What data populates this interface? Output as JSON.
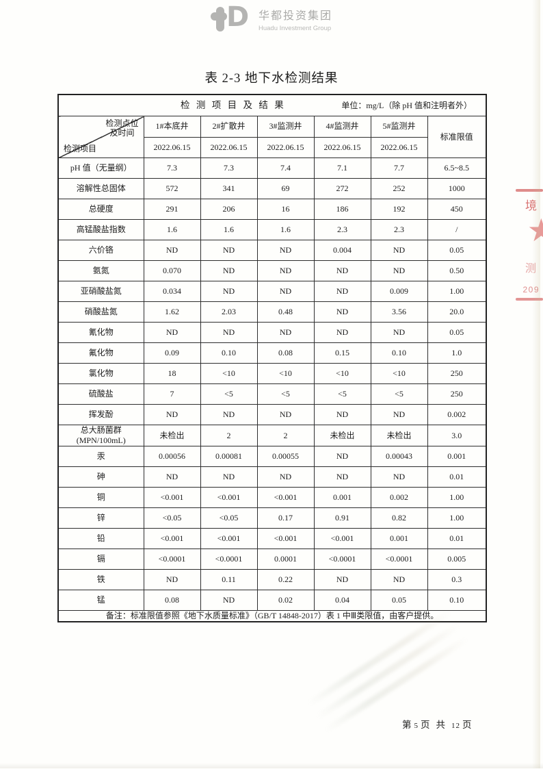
{
  "logo": {
    "icon": "huadu-monogram-icon",
    "name_cn": "华都投资集团",
    "name_en": "Huadu Investment Group"
  },
  "page": {
    "title": "表 2-3 地下水检测结果"
  },
  "table": {
    "header_title": "检 测 项 目 及 结 果",
    "unit_note": "单位：mg/L（除 pH 值和注明者外）",
    "corner_top": "检测点位\n及时间",
    "corner_bottom": "检测项目",
    "limit_header": "标准限值",
    "columns": [
      {
        "label": "1#本底井",
        "date": "2022.06.15"
      },
      {
        "label": "2#扩散井",
        "date": "2022.06.15"
      },
      {
        "label": "3#监测井",
        "date": "2022.06.15"
      },
      {
        "label": "4#监测井",
        "date": "2022.06.15"
      },
      {
        "label": "5#监测井",
        "date": "2022.06.15"
      }
    ],
    "rows": [
      {
        "name": "pH 值（无量纲）",
        "values": [
          "7.3",
          "7.3",
          "7.4",
          "7.1",
          "7.7"
        ],
        "limit": "6.5~8.5"
      },
      {
        "name": "溶解性总固体",
        "values": [
          "572",
          "341",
          "69",
          "272",
          "252"
        ],
        "limit": "1000"
      },
      {
        "name": "总硬度",
        "values": [
          "291",
          "206",
          "16",
          "186",
          "192"
        ],
        "limit": "450"
      },
      {
        "name": "高锰酸盐指数",
        "values": [
          "1.6",
          "1.6",
          "1.6",
          "2.3",
          "2.3"
        ],
        "limit": "/"
      },
      {
        "name": "六价铬",
        "values": [
          "ND",
          "ND",
          "ND",
          "0.004",
          "ND"
        ],
        "limit": "0.05"
      },
      {
        "name": "氨氮",
        "values": [
          "0.070",
          "ND",
          "ND",
          "ND",
          "ND"
        ],
        "limit": "0.50"
      },
      {
        "name": "亚硝酸盐氮",
        "values": [
          "0.034",
          "ND",
          "ND",
          "ND",
          "0.009"
        ],
        "limit": "1.00"
      },
      {
        "name": "硝酸盐氮",
        "values": [
          "1.62",
          "2.03",
          "0.48",
          "ND",
          "3.56"
        ],
        "limit": "20.0"
      },
      {
        "name": "氰化物",
        "values": [
          "ND",
          "ND",
          "ND",
          "ND",
          "ND"
        ],
        "limit": "0.05"
      },
      {
        "name": "氟化物",
        "values": [
          "0.09",
          "0.10",
          "0.08",
          "0.15",
          "0.10"
        ],
        "limit": "1.0"
      },
      {
        "name": "氯化物",
        "values": [
          "18",
          "<10",
          "<10",
          "<10",
          "<10"
        ],
        "limit": "250"
      },
      {
        "name": "硫酸盐",
        "values": [
          "7",
          "<5",
          "<5",
          "<5",
          "<5"
        ],
        "limit": "250"
      },
      {
        "name": "挥发酚",
        "values": [
          "ND",
          "ND",
          "ND",
          "ND",
          "ND"
        ],
        "limit": "0.002"
      },
      {
        "name": "总大肠菌群\n(MPN/100mL)",
        "values": [
          "未检出",
          "2",
          "2",
          "未检出",
          "未检出"
        ],
        "limit": "3.0"
      },
      {
        "name": "汞",
        "values": [
          "0.00056",
          "0.00081",
          "0.00055",
          "ND",
          "0.00043"
        ],
        "limit": "0.001"
      },
      {
        "name": "砷",
        "values": [
          "ND",
          "ND",
          "ND",
          "ND",
          "ND"
        ],
        "limit": "0.01"
      },
      {
        "name": "铜",
        "values": [
          "<0.001",
          "<0.001",
          "<0.001",
          "0.001",
          "0.002"
        ],
        "limit": "1.00"
      },
      {
        "name": "锌",
        "values": [
          "<0.05",
          "<0.05",
          "0.17",
          "0.91",
          "0.82"
        ],
        "limit": "1.00"
      },
      {
        "name": "铅",
        "values": [
          "<0.001",
          "<0.001",
          "<0.001",
          "<0.001",
          "0.001"
        ],
        "limit": "0.01"
      },
      {
        "name": "镉",
        "values": [
          "<0.0001",
          "<0.0001",
          "0.0001",
          "<0.0001",
          "<0.0001"
        ],
        "limit": "0.005"
      },
      {
        "name": "铁",
        "values": [
          "ND",
          "0.11",
          "0.22",
          "ND",
          "ND"
        ],
        "limit": "0.3"
      },
      {
        "name": "锰",
        "values": [
          "0.08",
          "ND",
          "0.02",
          "0.04",
          "0.05"
        ],
        "limit": "0.10"
      }
    ],
    "note": "备注：标准限值参照《地下水质量标准》（GB/T 14848-2017）表 1 中Ⅲ类限值，由客户提供。"
  },
  "stamp": {
    "char_top": "境",
    "star": "★",
    "char_mid": "测",
    "number": "209",
    "color": "#cc4e4e"
  },
  "footer": {
    "prefix": "第",
    "page": "5",
    "mid1": "页",
    "mid2": "共",
    "total": "12",
    "suffix": "页"
  }
}
